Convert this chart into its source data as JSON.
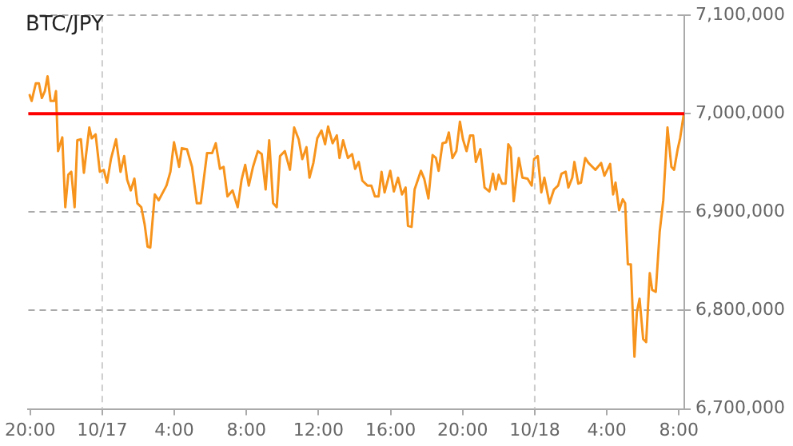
{
  "chart_data": {
    "type": "line",
    "title": "BTC/JPY",
    "xlim": [
      "--10-16T19:54",
      "--10-18T08:18"
    ],
    "xticks": [
      {
        "value": "--10-16T20:00",
        "label": "20:00"
      },
      {
        "value": "--10-17T00:00",
        "label": "10/17"
      },
      {
        "value": "--10-17T04:00",
        "label": "4:00"
      },
      {
        "value": "--10-17T08:00",
        "label": "8:00"
      },
      {
        "value": "--10-17T12:00",
        "label": "12:00"
      },
      {
        "value": "--10-17T16:00",
        "label": "16:00"
      },
      {
        "value": "--10-17T20:00",
        "label": "20:00"
      },
      {
        "value": "--10-18T00:00",
        "label": "10/18"
      },
      {
        "value": "--10-18T04:00",
        "label": "4:00"
      },
      {
        "value": "--10-18T08:00",
        "label": "8:00"
      }
    ],
    "ylim": [
      6700000,
      7100000
    ],
    "yticks": [
      {
        "value": 6700000,
        "label": "6,700,000"
      },
      {
        "value": 6800000,
        "label": "6,800,000"
      },
      {
        "value": 6900000,
        "label": "6,900,000"
      },
      {
        "value": 7000000,
        "label": "7,000,000"
      },
      {
        "value": 7100000,
        "label": "7,100,000"
      }
    ],
    "grid": "y",
    "legend": false,
    "marker": "none",
    "line_style": "solid",
    "ref_lines": [
      {
        "axis": "y",
        "value": 7000000,
        "color": "#ff0000",
        "line_style": "solid"
      },
      {
        "axis": "x",
        "value": "--10-17T00:00",
        "color": "#cccccc",
        "line_style": "dashed"
      },
      {
        "axis": "x",
        "value": "--10-18T00:00",
        "color": "#cccccc",
        "line_style": "dashed"
      }
    ],
    "series": [
      {
        "color": "#f7941d",
        "x": [
          "--10-16T19:57",
          "--10-16T20:05",
          "--10-16T20:19",
          "--10-16T20:29",
          "--10-16T20:39",
          "--10-16T20:49",
          "--10-16T20:58",
          "--10-16T21:08",
          "--10-16T21:20",
          "--10-16T21:26",
          "--10-16T21:33",
          "--10-16T21:47",
          "--10-16T21:57",
          "--10-16T22:07",
          "--10-16T22:17",
          "--10-16T22:28",
          "--10-16T22:37",
          "--10-16T22:49",
          "--10-16T22:59",
          "--10-16T23:17",
          "--10-16T23:25",
          "--10-16T23:38",
          "--10-16T23:52",
          "--10-17T00:05",
          "--10-17T00:16",
          "--10-17T00:29",
          "--10-17T00:46",
          "--10-17T01:01",
          "--10-17T01:13",
          "--10-17T01:23",
          "--10-17T01:35",
          "--10-17T01:47",
          "--10-17T01:57",
          "--10-17T02:10",
          "--10-17T02:21",
          "--10-17T02:31",
          "--10-17T02:40",
          "--10-17T02:55",
          "--10-17T03:08",
          "--10-17T03:34",
          "--10-17T03:47",
          "--10-17T03:59",
          "--10-17T04:16",
          "--10-17T04:25",
          "--10-17T04:42",
          "--10-17T04:59",
          "--10-17T05:15",
          "--10-17T05:28",
          "--10-17T05:49",
          "--10-17T06:06",
          "--10-17T06:18",
          "--10-17T06:32",
          "--10-17T06:44",
          "--10-17T06:57",
          "--10-17T07:14",
          "--10-17T07:31",
          "--10-17T07:44",
          "--10-17T07:56",
          "--10-17T08:08",
          "--10-17T08:22",
          "--10-17T08:38",
          "--10-17T08:51",
          "--10-17T09:04",
          "--10-17T09:16",
          "--10-17T09:29",
          "--10-17T09:41",
          "--10-17T09:52",
          "--10-17T10:08",
          "--10-17T10:25",
          "--10-17T10:39",
          "--10-17T10:54",
          "--10-17T11:06",
          "--10-17T11:20",
          "--10-17T11:30",
          "--10-17T11:43",
          "--10-17T11:56",
          "--10-17T12:10",
          "--10-17T12:22",
          "--10-17T12:32",
          "--10-17T12:47",
          "--10-17T13:01",
          "--10-17T13:10",
          "--10-17T13:22",
          "--10-17T13:38",
          "--10-17T13:52",
          "--10-17T14:02",
          "--10-17T14:14",
          "--10-17T14:26",
          "--10-17T14:43",
          "--10-17T14:56",
          "--10-17T15:08",
          "--10-17T15:20",
          "--10-17T15:30",
          "--10-17T15:40",
          "--10-17T15:59",
          "--10-17T16:11",
          "--10-17T16:25",
          "--10-17T16:38",
          "--10-17T16:50",
          "--10-17T16:58",
          "--10-17T17:10",
          "--10-17T17:20",
          "--10-17T17:41",
          "--10-17T17:52",
          "--10-17T18:06",
          "--10-17T18:20",
          "--10-17T18:31",
          "--10-17T18:40",
          "--10-17T18:53",
          "--10-17T19:05",
          "--10-17T19:14",
          "--10-17T19:26",
          "--10-17T19:39",
          "--10-17T19:51",
          "--10-17T20:01",
          "--10-17T20:13",
          "--10-17T20:25",
          "--10-17T20:35",
          "--10-17T20:44",
          "--10-17T20:59",
          "--10-17T21:13",
          "--10-17T21:29",
          "--10-17T21:41",
          "--10-17T21:50",
          "--10-17T22:00",
          "--10-17T22:11",
          "--10-17T22:23",
          "--10-17T22:32",
          "--10-17T22:40",
          "--10-17T22:50",
          "--10-17T23:07",
          "--10-17T23:19",
          "--10-17T23:36",
          "--10-17T23:50",
          "--10-17T23:58",
          "--10-18T00:10",
          "--10-18T00:22",
          "--10-18T00:32",
          "--10-18T00:49",
          "--10-18T01:04",
          "--10-18T01:18",
          "--10-18T01:29",
          "--10-18T01:43",
          "--10-18T01:52",
          "--10-18T02:05",
          "--10-18T02:12",
          "--10-18T02:25",
          "--10-18T02:34",
          "--10-18T02:48",
          "--10-18T02:59",
          "--10-18T03:22",
          "--10-18T03:41",
          "--10-18T03:52",
          "--10-18T04:11",
          "--10-18T04:21",
          "--10-18T04:29",
          "--10-18T04:41",
          "--10-18T04:53",
          "--10-18T05:01",
          "--10-18T05:10",
          "--10-18T05:20",
          "--10-18T05:32",
          "--10-18T05:40",
          "--10-18T05:49",
          "--10-18T06:01",
          "--10-18T06:11",
          "--10-18T06:23",
          "--10-18T06:31",
          "--10-18T06:43",
          "--10-18T06:56",
          "--10-18T07:08",
          "--10-18T07:22",
          "--10-18T07:35",
          "--10-18T07:44",
          "--10-18T07:56",
          "--10-18T08:04",
          "--10-18T08:16"
        ],
        "values": [
          7020000,
          7013000,
          7031000,
          7031000,
          7016000,
          7023000,
          7038000,
          7013000,
          7013000,
          7023000,
          6962000,
          6976000,
          6905000,
          6938000,
          6941000,
          6905000,
          6973000,
          6974000,
          6940000,
          6986000,
          6975000,
          6979000,
          6941000,
          6943000,
          6930000,
          6954000,
          6974000,
          6941000,
          6957000,
          6933000,
          6922000,
          6934000,
          6909000,
          6905000,
          6888000,
          6865000,
          6864000,
          6918000,
          6912000,
          6927000,
          6941000,
          6971000,
          6946000,
          6965000,
          6964000,
          6946000,
          6909000,
          6909000,
          6960000,
          6960000,
          6970000,
          6944000,
          6946000,
          6916000,
          6922000,
          6905000,
          6933000,
          6948000,
          6927000,
          6946000,
          6962000,
          6959000,
          6923000,
          6973000,
          6909000,
          6905000,
          6957000,
          6962000,
          6943000,
          6986000,
          6974000,
          6954000,
          6966000,
          6935000,
          6950000,
          6975000,
          6983000,
          6969000,
          6987000,
          6970000,
          6978000,
          6955000,
          6973000,
          6955000,
          6959000,
          6944000,
          6951000,
          6932000,
          6927000,
          6927000,
          6916000,
          6916000,
          6941000,
          6920000,
          6942000,
          6921000,
          6935000,
          6918000,
          6925000,
          6886000,
          6885000,
          6923000,
          6942000,
          6934000,
          6914000,
          6958000,
          6955000,
          6942000,
          6970000,
          6971000,
          6981000,
          6955000,
          6962000,
          6992000,
          6974000,
          6962000,
          6978000,
          6978000,
          6951000,
          6964000,
          6925000,
          6921000,
          6939000,
          6923000,
          6938000,
          6929000,
          6929000,
          6969000,
          6965000,
          6911000,
          6955000,
          6935000,
          6934000,
          6927000,
          6954000,
          6957000,
          6920000,
          6935000,
          6909000,
          6923000,
          6927000,
          6939000,
          6941000,
          6925000,
          6935000,
          6951000,
          6929000,
          6930000,
          6955000,
          6950000,
          6943000,
          6950000,
          6937000,
          6949000,
          6918000,
          6930000,
          6902000,
          6913000,
          6909000,
          6847000,
          6847000,
          6753000,
          6798000,
          6812000,
          6771000,
          6768000,
          6838000,
          6821000,
          6819000,
          6880000,
          6912000,
          6986000,
          6946000,
          6943000,
          6964000,
          6975000,
          6999000
        ]
      }
    ]
  }
}
